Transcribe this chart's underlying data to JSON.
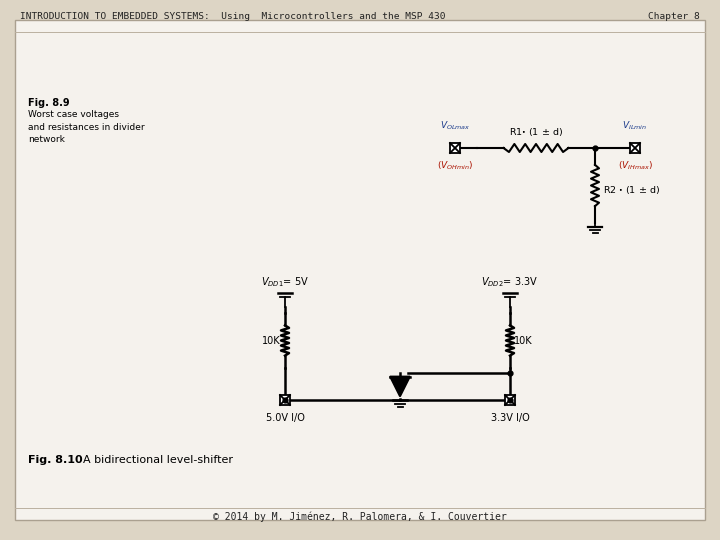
{
  "bg_color": "#ddd5c5",
  "slide_bg": "#f5f2ed",
  "header_text": "INTRODUCTION TO EMBEDDED SYSTEMS:  Using  Microcontrollers and the MSP 430",
  "chapter_text": "Chapter 8",
  "footer_text": "© 2014 by M. Jiménez, R. Palomera, & I. Couvertier",
  "fig89_label": "Fig. 8.9",
  "fig89_desc": "Worst case voltages\nand resistances in divider\nnetwork",
  "fig810_label": "Fig. 8.10",
  "fig810_desc": "A bidirectional level-shifter",
  "black": "#000000",
  "red_color": "#aa1100",
  "blue_color": "#1a3a8a",
  "header_color": "#222222",
  "slide_border": "#aaa090"
}
